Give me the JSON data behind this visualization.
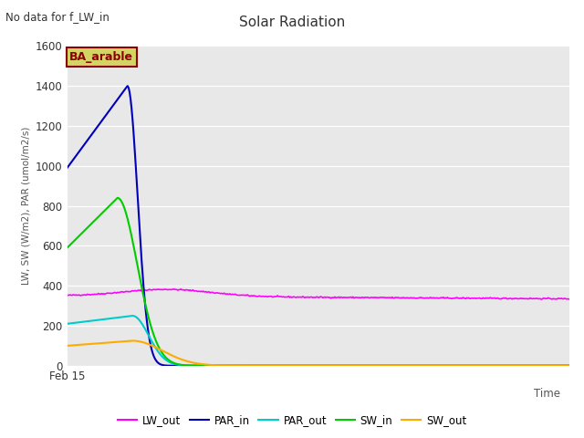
{
  "title": "Solar Radiation",
  "subtitle": "No data for f_LW_in",
  "xlabel": "Time",
  "ylabel": "LW, SW (W/m2), PAR (umol/m2/s)",
  "ylim": [
    0,
    1600
  ],
  "yticks": [
    0,
    200,
    400,
    600,
    800,
    1000,
    1200,
    1400,
    1600
  ],
  "xmin_label": "Feb 15",
  "bg_color": "#e8e8e8",
  "legend_labels": [
    "LW_out",
    "PAR_in",
    "PAR_out",
    "SW_in",
    "SW_out"
  ],
  "legend_colors": [
    "#ff00ff",
    "#0000bb",
    "#00cccc",
    "#00cc00",
    "#ffaa00"
  ],
  "annotation_text": "BA_arable",
  "annotation_color": "#8b0000",
  "annotation_bg": "#d4d464"
}
